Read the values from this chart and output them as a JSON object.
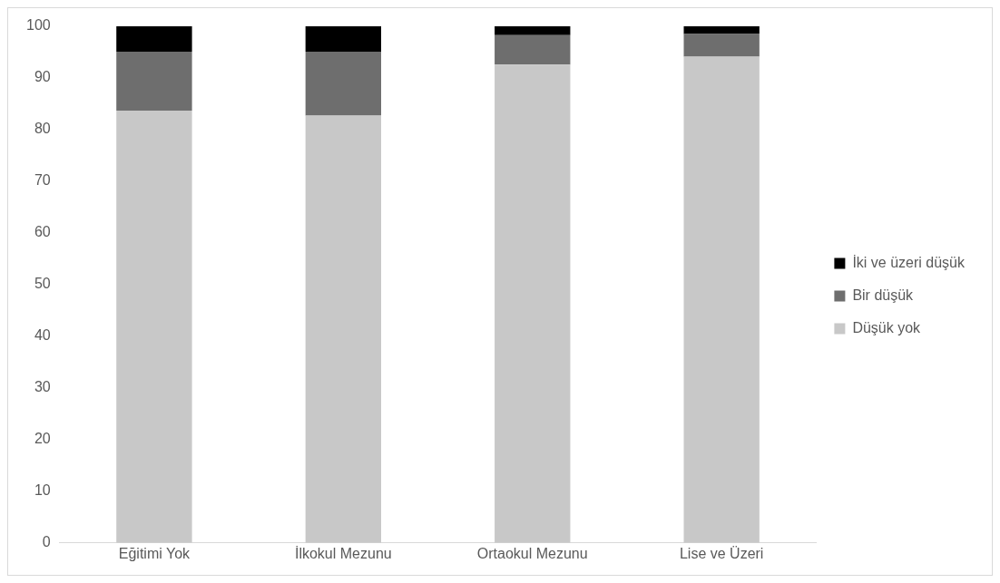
{
  "chart_data": {
    "type": "bar",
    "stacked": true,
    "categories": [
      "Eğitimi Yok",
      "İlkokul Mezunu",
      "Ortaokul Mezunu",
      "Lise ve Üzeri"
    ],
    "series": [
      {
        "name": "Düşük yok",
        "color": "#c8c8c8",
        "values": [
          83.7,
          82.7,
          92.6,
          94.1
        ]
      },
      {
        "name": "Bir düşük",
        "color": "#6e6e6e",
        "values": [
          11.4,
          12.4,
          5.7,
          4.4
        ]
      },
      {
        "name": "İki ve üzeri düşük",
        "color": "#000000",
        "values": [
          4.9,
          4.9,
          1.7,
          1.5
        ]
      }
    ],
    "ylim": [
      0,
      100
    ],
    "yticks": [
      0,
      10,
      20,
      30,
      40,
      50,
      60,
      70,
      80,
      90,
      100
    ],
    "grid": false,
    "legend": "right"
  }
}
